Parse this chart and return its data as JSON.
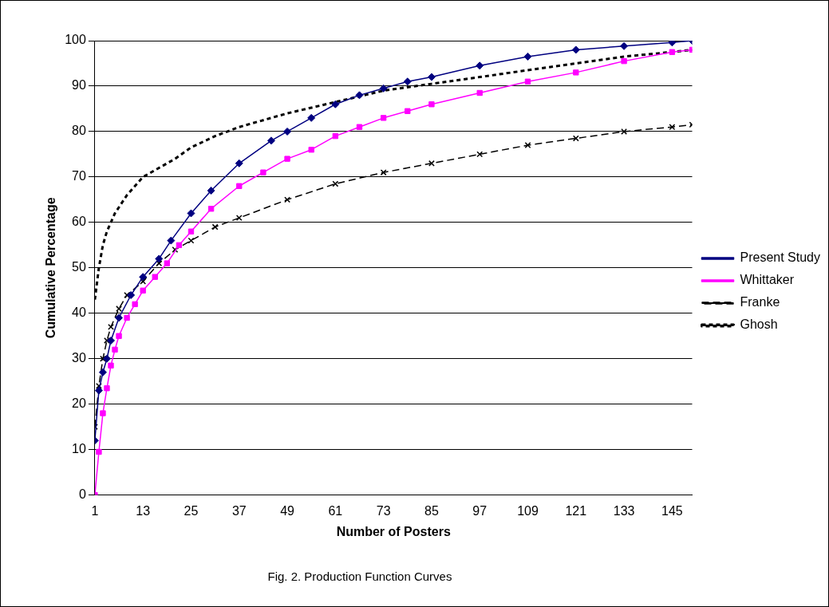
{
  "chart_data": {
    "type": "line",
    "title": "Fig. 2. Production Function Curves",
    "xlabel": "Number of Posters",
    "ylabel": "Cumulative Percentage",
    "xlim": [
      1,
      150
    ],
    "xticks": [
      1,
      13,
      25,
      37,
      49,
      61,
      73,
      85,
      97,
      109,
      121,
      133,
      145
    ],
    "ylim": [
      0,
      100
    ],
    "yticks": [
      0,
      10,
      20,
      30,
      40,
      50,
      60,
      70,
      80,
      90,
      100
    ],
    "grid": "y",
    "legend": "right",
    "series": [
      {
        "name": "Present Study",
        "color": "#000080",
        "marker": "diamond",
        "line_style": "solid",
        "x": [
          1,
          2,
          3,
          4,
          5,
          7,
          10,
          13,
          17,
          20,
          25,
          30,
          37,
          45,
          49,
          55,
          61,
          67,
          73,
          79,
          85,
          97,
          109,
          121,
          133,
          145,
          150
        ],
        "values": [
          12,
          23,
          27,
          30,
          34,
          39,
          44,
          48,
          52,
          56,
          62,
          67,
          73,
          78,
          80,
          83,
          86,
          88,
          89.5,
          91,
          92,
          94.5,
          96.5,
          98,
          98.8,
          99.6,
          100
        ]
      },
      {
        "name": "Whittaker",
        "color": "#ff00ff",
        "marker": "square",
        "line_style": "solid",
        "x": [
          1,
          2,
          3,
          4,
          5,
          6,
          7,
          9,
          11,
          13,
          16,
          19,
          22,
          25,
          30,
          37,
          43,
          49,
          55,
          61,
          67,
          73,
          79,
          85,
          97,
          109,
          121,
          133,
          145,
          150
        ],
        "values": [
          0,
          9.5,
          18,
          23.5,
          28.5,
          32,
          35,
          39,
          42,
          45,
          48,
          51,
          55,
          58,
          63,
          68,
          71,
          74,
          76,
          79,
          81,
          83,
          84.5,
          86,
          88.5,
          91,
          93,
          95.5,
          97.5,
          98
        ]
      },
      {
        "name": "Franke",
        "color": "#000000",
        "marker": "cross",
        "line_style": "dashed",
        "x": [
          1,
          2,
          3,
          4,
          5,
          7,
          9,
          13,
          17,
          21,
          25,
          31,
          37,
          49,
          61,
          73,
          85,
          97,
          109,
          121,
          133,
          145,
          150
        ],
        "values": [
          15,
          24,
          30,
          34,
          37,
          41,
          44,
          47,
          51,
          54,
          56,
          59,
          61,
          65,
          68.5,
          71,
          73,
          75,
          77,
          78.5,
          80,
          81,
          81.5
        ]
      },
      {
        "name": "Ghosh",
        "color": "#000000",
        "marker": "none",
        "line_style": "dotted",
        "x": [
          1,
          2,
          3,
          4,
          6,
          9,
          13,
          17,
          21,
          25,
          31,
          37,
          49,
          61,
          73,
          85,
          97,
          109,
          121,
          133,
          145,
          150
        ],
        "values": [
          43,
          50,
          55,
          58,
          62,
          66,
          70,
          72,
          74,
          76.5,
          79,
          81,
          84,
          86.5,
          89,
          90.5,
          92,
          93.5,
          95,
          96.5,
          97.5,
          98
        ]
      }
    ]
  }
}
